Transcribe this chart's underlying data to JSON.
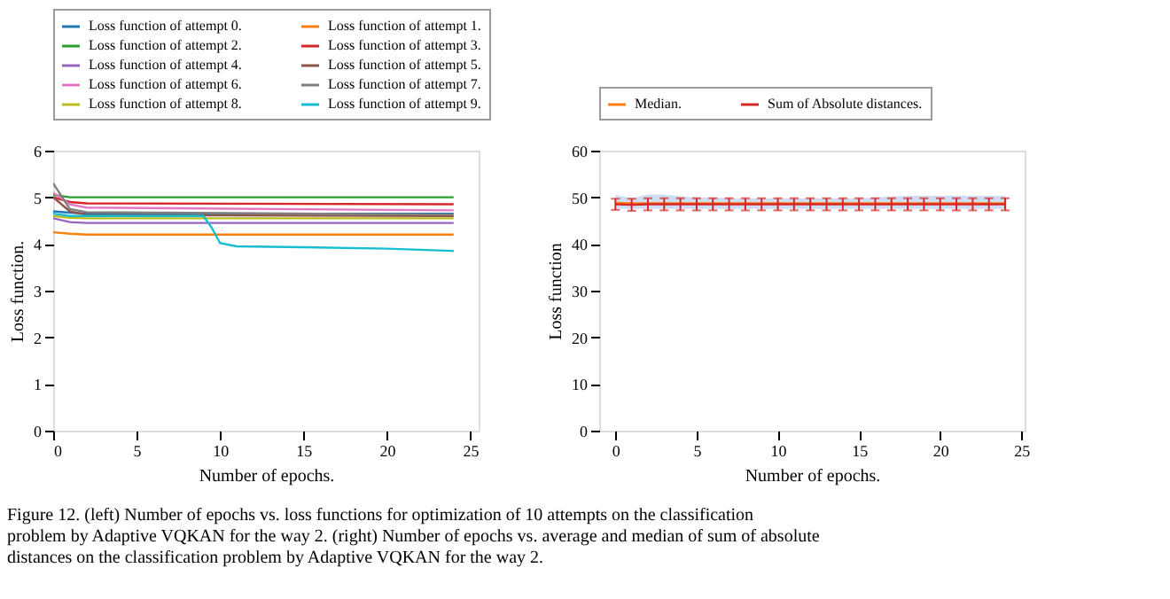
{
  "chart_data": [
    {
      "type": "line",
      "xlabel": "Number of epochs.",
      "ylabel": "Loss function.",
      "xlim": [
        0,
        25.5
      ],
      "ylim": [
        0,
        6
      ],
      "xticks": [
        0,
        5,
        10,
        15,
        20,
        25
      ],
      "yticks": [
        0,
        1,
        2,
        3,
        4,
        5,
        6
      ],
      "grid": false,
      "legend": "top",
      "marker": "none",
      "line_style": "solid",
      "annotations": [
        "Figure 12. (left) Number of epochs vs. loss functions for optimization of 10 attempts on the classification problem by Adaptive VQKAN for the way 2. (right) Number of epochs vs. average and median of sum of absolute distances on the classification problem by Adaptive VQKAN for the way 2."
      ],
      "series": [
        {
          "name": "Loss function of attempt 0.",
          "color": "#1f77b4",
          "x": [
            0,
            1,
            2,
            24
          ],
          "values": [
            4.7,
            4.67,
            4.65,
            4.65
          ]
        },
        {
          "name": "Loss function of attempt 1.",
          "color": "#ff7f0e",
          "x": [
            0,
            1,
            2,
            24
          ],
          "values": [
            4.25,
            4.22,
            4.2,
            4.2
          ]
        },
        {
          "name": "Loss function of attempt 2.",
          "color": "#2ca02c",
          "x": [
            0,
            1,
            2,
            24
          ],
          "values": [
            5.05,
            5.0,
            5.0,
            5.0
          ]
        },
        {
          "name": "Loss function of attempt 3.",
          "color": "#d62728",
          "x": [
            0,
            1,
            2,
            24
          ],
          "values": [
            5.0,
            4.9,
            4.87,
            4.85
          ]
        },
        {
          "name": "Loss function of attempt 4.",
          "color": "#9467bd",
          "x": [
            0,
            1,
            2,
            24
          ],
          "values": [
            4.55,
            4.47,
            4.45,
            4.45
          ]
        },
        {
          "name": "Loss function of attempt 5.",
          "color": "#8c564b",
          "x": [
            0,
            1,
            2,
            24
          ],
          "values": [
            5.0,
            4.7,
            4.62,
            4.6
          ]
        },
        {
          "name": "Loss function of attempt 6.",
          "color": "#e377c2",
          "x": [
            0,
            1,
            2,
            24
          ],
          "values": [
            5.1,
            4.85,
            4.78,
            4.72
          ]
        },
        {
          "name": "Loss function of attempt 7.",
          "color": "#7f7f7f",
          "x": [
            0,
            1,
            2,
            24
          ],
          "values": [
            5.3,
            4.75,
            4.68,
            4.63
          ]
        },
        {
          "name": "Loss function of attempt 8.",
          "color": "#bcbd22",
          "x": [
            0,
            1,
            2,
            24
          ],
          "values": [
            4.6,
            4.56,
            4.55,
            4.55
          ]
        },
        {
          "name": "Loss function of attempt 9.",
          "color": "#17becf",
          "x": [
            0,
            1,
            2,
            5,
            9,
            9.5,
            10,
            11,
            15,
            20,
            24
          ],
          "values": [
            4.65,
            4.6,
            4.6,
            4.6,
            4.6,
            4.35,
            4.02,
            3.95,
            3.93,
            3.9,
            3.85
          ]
        }
      ]
    },
    {
      "type": "line",
      "xlabel": "Number of epochs.",
      "ylabel": "Loss function",
      "xlim": [
        -1,
        25.2
      ],
      "ylim": [
        0,
        60
      ],
      "xticks": [
        0,
        5,
        10,
        15,
        20,
        25
      ],
      "yticks": [
        0,
        10,
        20,
        30,
        40,
        50,
        60
      ],
      "grid": false,
      "legend": "top",
      "marker": "none",
      "line_style": "solid",
      "series": [
        {
          "name": "Median.",
          "color": "#ff7f0e",
          "x": [
            0,
            1,
            2,
            3,
            4,
            5,
            6,
            7,
            8,
            9,
            10,
            11,
            12,
            13,
            14,
            15,
            16,
            17,
            18,
            19,
            20,
            21,
            22,
            23,
            24
          ],
          "values": [
            48.8,
            48.7,
            48.7,
            48.7,
            48.7,
            48.7,
            48.7,
            48.7,
            48.7,
            48.7,
            48.7,
            48.7,
            48.7,
            48.7,
            48.7,
            48.7,
            48.7,
            48.7,
            48.7,
            48.7,
            48.7,
            48.7,
            48.7,
            48.7,
            48.7
          ]
        },
        {
          "name": "Sum of Absolute distances.",
          "color": "#d62728",
          "x": [
            0,
            1,
            2,
            3,
            4,
            5,
            6,
            7,
            8,
            9,
            10,
            11,
            12,
            13,
            14,
            15,
            16,
            17,
            18,
            19,
            20,
            21,
            22,
            23,
            24
          ],
          "values": [
            48.5,
            48.4,
            48.5,
            48.5,
            48.5,
            48.5,
            48.5,
            48.5,
            48.5,
            48.5,
            48.5,
            48.5,
            48.5,
            48.5,
            48.5,
            48.5,
            48.5,
            48.5,
            48.5,
            48.5,
            48.5,
            48.5,
            48.5,
            48.5,
            48.5
          ],
          "errors": [
            1.2,
            1.3,
            1.3,
            1.3,
            1.3,
            1.3,
            1.3,
            1.3,
            1.3,
            1.3,
            1.3,
            1.3,
            1.3,
            1.3,
            1.3,
            1.3,
            1.3,
            1.3,
            1.3,
            1.3,
            1.3,
            1.3,
            1.3,
            1.3,
            1.3
          ],
          "lower": [
            47.5,
            47.5,
            47.5,
            47.5,
            47.5,
            47.5,
            47.5,
            47.5,
            47.5,
            47.5,
            47.5,
            47.5,
            47.5,
            47.5,
            47.5,
            47.5,
            47.5,
            47.5,
            47.5,
            47.5,
            47.5,
            47.5,
            47.5,
            47.5,
            47.5
          ],
          "upper": [
            50.5,
            49.8,
            50.6,
            50.6,
            50.2,
            50.0,
            50.0,
            49.8,
            49.8,
            49.8,
            49.8,
            49.8,
            49.8,
            49.8,
            49.8,
            49.8,
            50.0,
            50.2,
            50.3,
            50.3,
            50.3,
            50.3,
            50.3,
            50.3,
            50.3
          ]
        }
      ]
    }
  ]
}
